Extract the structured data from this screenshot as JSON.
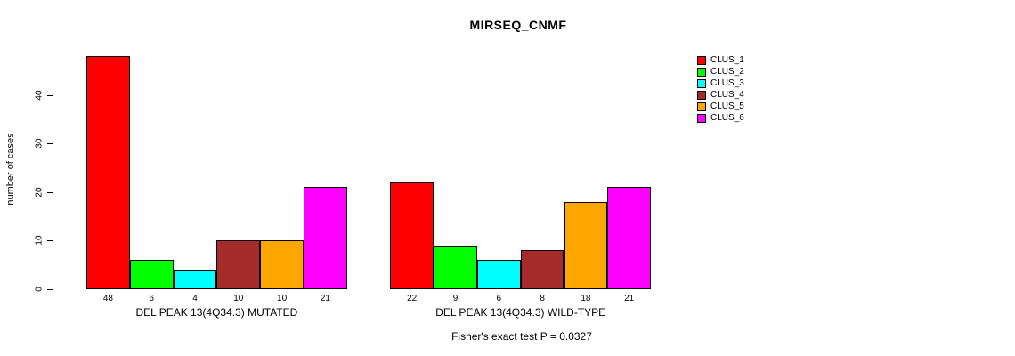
{
  "title": "MIRSEQ_CNMF",
  "footer": "Fisher's exact test P = 0.0327",
  "chart_data": {
    "type": "bar",
    "title": "MIRSEQ_CNMF",
    "xlabel": "",
    "ylabel": "number of cases",
    "ylim": [
      0,
      48
    ],
    "yticks": [
      0,
      10,
      20,
      30,
      40
    ],
    "grid": false,
    "legend_position": "top-right",
    "categories": [
      "DEL PEAK 13(4Q34.3) MUTATED",
      "DEL PEAK 13(4Q34.3) WILD-TYPE"
    ],
    "series": [
      {
        "name": "CLUS_1",
        "color": "#ff0000",
        "values": [
          48,
          22
        ]
      },
      {
        "name": "CLUS_2",
        "color": "#00ff00",
        "values": [
          6,
          9
        ]
      },
      {
        "name": "CLUS_3",
        "color": "#00ffff",
        "values": [
          4,
          6
        ]
      },
      {
        "name": "CLUS_4",
        "color": "#a52a2a",
        "values": [
          10,
          8
        ]
      },
      {
        "name": "CLUS_5",
        "color": "#ffa500",
        "values": [
          10,
          18
        ]
      },
      {
        "name": "CLUS_6",
        "color": "#ff00ff",
        "values": [
          21,
          21
        ]
      }
    ],
    "bar_value_labels": [
      [
        48,
        6,
        4,
        10,
        10,
        21
      ],
      [
        22,
        9,
        6,
        8,
        18,
        21
      ]
    ],
    "annotation": "Fisher's exact test P = 0.0327"
  }
}
